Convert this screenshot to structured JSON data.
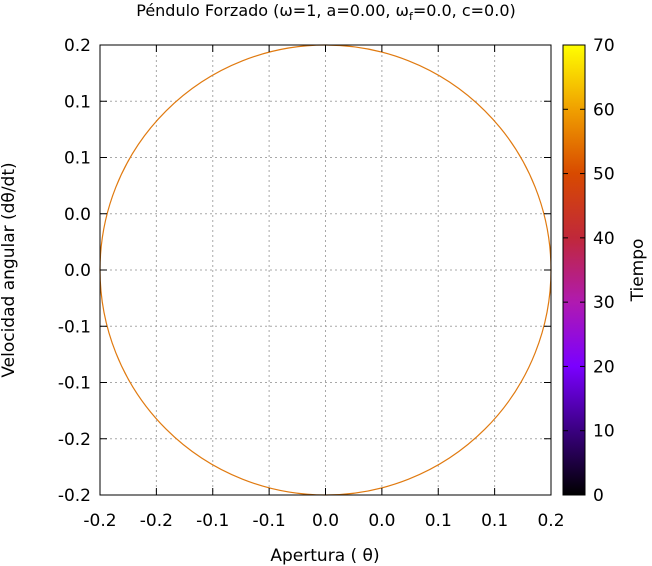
{
  "chart_data": {
    "type": "line",
    "title": "Péndulo Forzado (ω=1, a=0.00, ω",
    "title_sub": "f",
    "title_tail": "=0.0, c=0.0)",
    "xlabel": "Apertura ( θ)",
    "ylabel": "Velocidad angular (dθ/dt)",
    "xlim": [
      -0.2,
      0.2
    ],
    "ylim": [
      -0.2,
      0.2
    ],
    "grid": true,
    "x_tick_labels": [
      "-0.2",
      "-0.2",
      "-0.1",
      "-0.1",
      "0.0",
      "0.0",
      "0.1",
      "0.1",
      "0.2"
    ],
    "y_tick_labels": [
      "-0.2",
      "-0.2",
      "-0.1",
      "-0.1",
      "0.0",
      "0.0",
      "0.1",
      "0.1",
      "0.2"
    ],
    "series": [
      {
        "shape": "circle",
        "center": [
          0.0,
          0.0
        ],
        "radius": 0.2,
        "color": "#e07a10"
      }
    ],
    "colorbar": {
      "label": "Tiempo",
      "range": [
        0,
        70
      ],
      "ticks": [
        "0",
        "10",
        "20",
        "30",
        "40",
        "50",
        "60",
        "70"
      ],
      "palette": [
        "#000000",
        "#3a0080",
        "#7a00ff",
        "#b01ab0",
        "#c0283a",
        "#d84a00",
        "#f0a000",
        "#ffff00"
      ]
    }
  }
}
